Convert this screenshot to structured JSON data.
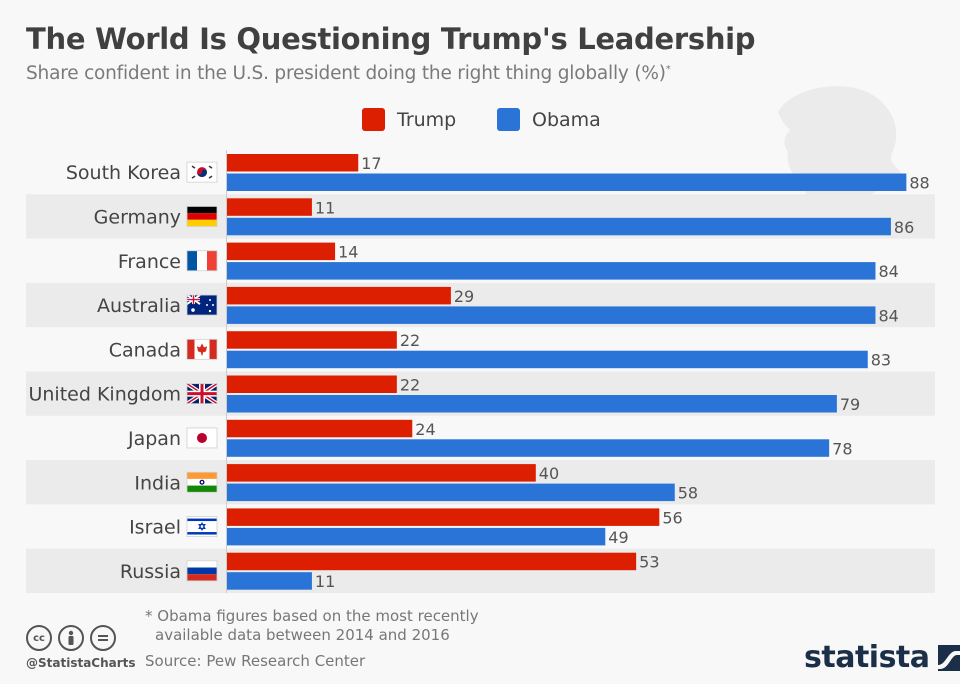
{
  "header": {
    "title": "The World Is Questioning Trump's Leadership",
    "subtitle": "Share confident in the U.S. president doing the right thing globally (%)",
    "subtitle_mark": "*"
  },
  "legend": [
    {
      "label": "Trump",
      "color": "#dc1f00"
    },
    {
      "label": "Obama",
      "color": "#2a74d8"
    }
  ],
  "chart_data": {
    "type": "bar",
    "orientation": "horizontal",
    "title": "The World Is Questioning Trump's Leadership",
    "subtitle": "Share confident in the U.S. president doing the right thing globally (%)*",
    "xlabel": "",
    "ylabel": "",
    "xlim": [
      0,
      100
    ],
    "grid": false,
    "legend_position": "top",
    "categories": [
      "South Korea",
      "Germany",
      "France",
      "Australia",
      "Canada",
      "United Kingdom",
      "Japan",
      "India",
      "Israel",
      "Russia"
    ],
    "flags": [
      "flag-south-korea",
      "flag-germany",
      "flag-france",
      "flag-australia",
      "flag-canada",
      "flag-united-kingdom",
      "flag-japan",
      "flag-india",
      "flag-israel",
      "flag-russia"
    ],
    "series": [
      {
        "name": "Trump",
        "color": "#dc1f00",
        "values": [
          17,
          11,
          14,
          29,
          22,
          22,
          24,
          40,
          56,
          53
        ]
      },
      {
        "name": "Obama",
        "color": "#2a74d8",
        "values": [
          88,
          86,
          84,
          84,
          83,
          79,
          78,
          58,
          49,
          11
        ]
      }
    ]
  },
  "footer": {
    "footnote_line1": "* Obama figures based on the most recently",
    "footnote_line2": "available data between 2014 and 2016",
    "source": "Source: Pew Research Center",
    "handle": "@StatistaCharts",
    "cc_icons": [
      "cc",
      "by",
      "nd"
    ],
    "logo_text": "statista"
  },
  "colors": {
    "trump": "#dc1f00",
    "obama": "#2a74d8",
    "band": "#ebebeb",
    "background": "#f8f8f8"
  }
}
